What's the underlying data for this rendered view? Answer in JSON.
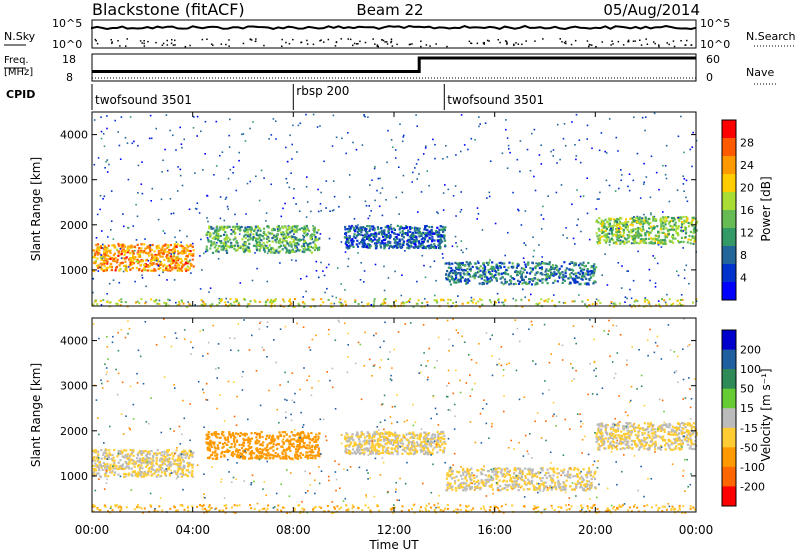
{
  "header": {
    "station": "Blackstone (fitACF)",
    "beam": "Beam 22",
    "date": "05/Aug/2014"
  },
  "nsky_panel": {
    "left_label": "N.Sky",
    "right_label": "N.Search",
    "tick_top": "10^5",
    "tick_bottom": "10^0"
  },
  "freq_panel": {
    "left_label_line1": "Freq.",
    "left_label_line2": "[MHz]",
    "left_tick_top": "18",
    "left_tick_bottom": "8",
    "right_label": "Nave",
    "right_tick_top": "60",
    "right_tick_bottom": "0",
    "freq_step_hours": [
      {
        "t": 0,
        "v": 0.35
      },
      {
        "t": 13.0,
        "v": 0.35
      },
      {
        "t": 13.0,
        "v": 0.85
      },
      {
        "t": 24.0,
        "v": 0.85
      }
    ]
  },
  "cpid": {
    "label": "CPID",
    "segments": [
      {
        "name": "twofsound 3501",
        "start": 0
      },
      {
        "name": "rbsp 200",
        "start": 8.0
      },
      {
        "name": "twofsound 3501",
        "start": 14.0
      }
    ]
  },
  "power_panel": {
    "ylabel": "Slant Range [km]",
    "colorbar_label": "Power [dB]",
    "colorbar_ticks": [
      "28",
      "24",
      "20",
      "16",
      "12",
      "8",
      "4"
    ],
    "colors": [
      "#ff0000",
      "#ff5a00",
      "#ff9900",
      "#ffcc00",
      "#aadd33",
      "#66bb55",
      "#339966",
      "#226699",
      "#0033cc",
      "#0000ff"
    ]
  },
  "velocity_panel": {
    "ylabel": "Slant Range [km]",
    "colorbar_label": "Velocity [m s⁻¹]",
    "colorbar_ticks": [
      "200",
      "100",
      "50",
      "15",
      "-15",
      "-50",
      "-100",
      "-200"
    ],
    "colors": [
      "#0000cc",
      "#1f5fa0",
      "#2e8b57",
      "#66cc33",
      "#bbbbbb",
      "#ffcc33",
      "#ff9900",
      "#ff6600",
      "#ff0000"
    ]
  },
  "x_axis": {
    "label": "Time UT",
    "ticks": [
      "00:00",
      "04:00",
      "08:00",
      "12:00",
      "16:00",
      "20:00",
      "00:00"
    ]
  },
  "y_axis": {
    "ticks": [
      "1000",
      "2000",
      "3000",
      "4000"
    ]
  },
  "chart_data": {
    "type": "heatmap",
    "title": "Blackstone (fitACF)",
    "subtitle": "Beam 22",
    "xlabel": "Time UT",
    "ylabel": "Slant Range [km]",
    "xlim_hours": [
      0,
      24
    ],
    "ylim_km": [
      200,
      4500
    ],
    "x_ticks": [
      "00:00",
      "04:00",
      "08:00",
      "12:00",
      "16:00",
      "20:00",
      "00:00"
    ],
    "y_ticks": [
      1000,
      2000,
      3000,
      4000
    ],
    "power_colorbar": {
      "label": "Power [dB]",
      "ticks": [
        28,
        24,
        20,
        16,
        12,
        8,
        4
      ]
    },
    "velocity_colorbar": {
      "label": "Velocity [m s-1]",
      "ticks": [
        200,
        100,
        50,
        15,
        -15,
        -50,
        -100,
        -200
      ]
    },
    "scatter_bands": [
      {
        "t_start": 0.0,
        "t_end": 4.0,
        "range_start_km": 1000,
        "range_end_km": 1600,
        "power_db": 24,
        "velocity": -15
      },
      {
        "t_start": 4.5,
        "t_end": 9.0,
        "range_start_km": 1400,
        "range_end_km": 2000,
        "power_db": 14,
        "velocity": -80
      },
      {
        "t_start": 10.0,
        "t_end": 14.0,
        "range_start_km": 1500,
        "range_end_km": 2000,
        "power_db": 8,
        "velocity": -15
      },
      {
        "t_start": 14.0,
        "t_end": 20.0,
        "range_start_km": 700,
        "range_end_km": 1200,
        "power_db": 10,
        "velocity": -15
      },
      {
        "t_start": 20.0,
        "t_end": 24.0,
        "range_start_km": 1600,
        "range_end_km": 2200,
        "power_db": 16,
        "velocity": -15
      }
    ]
  }
}
